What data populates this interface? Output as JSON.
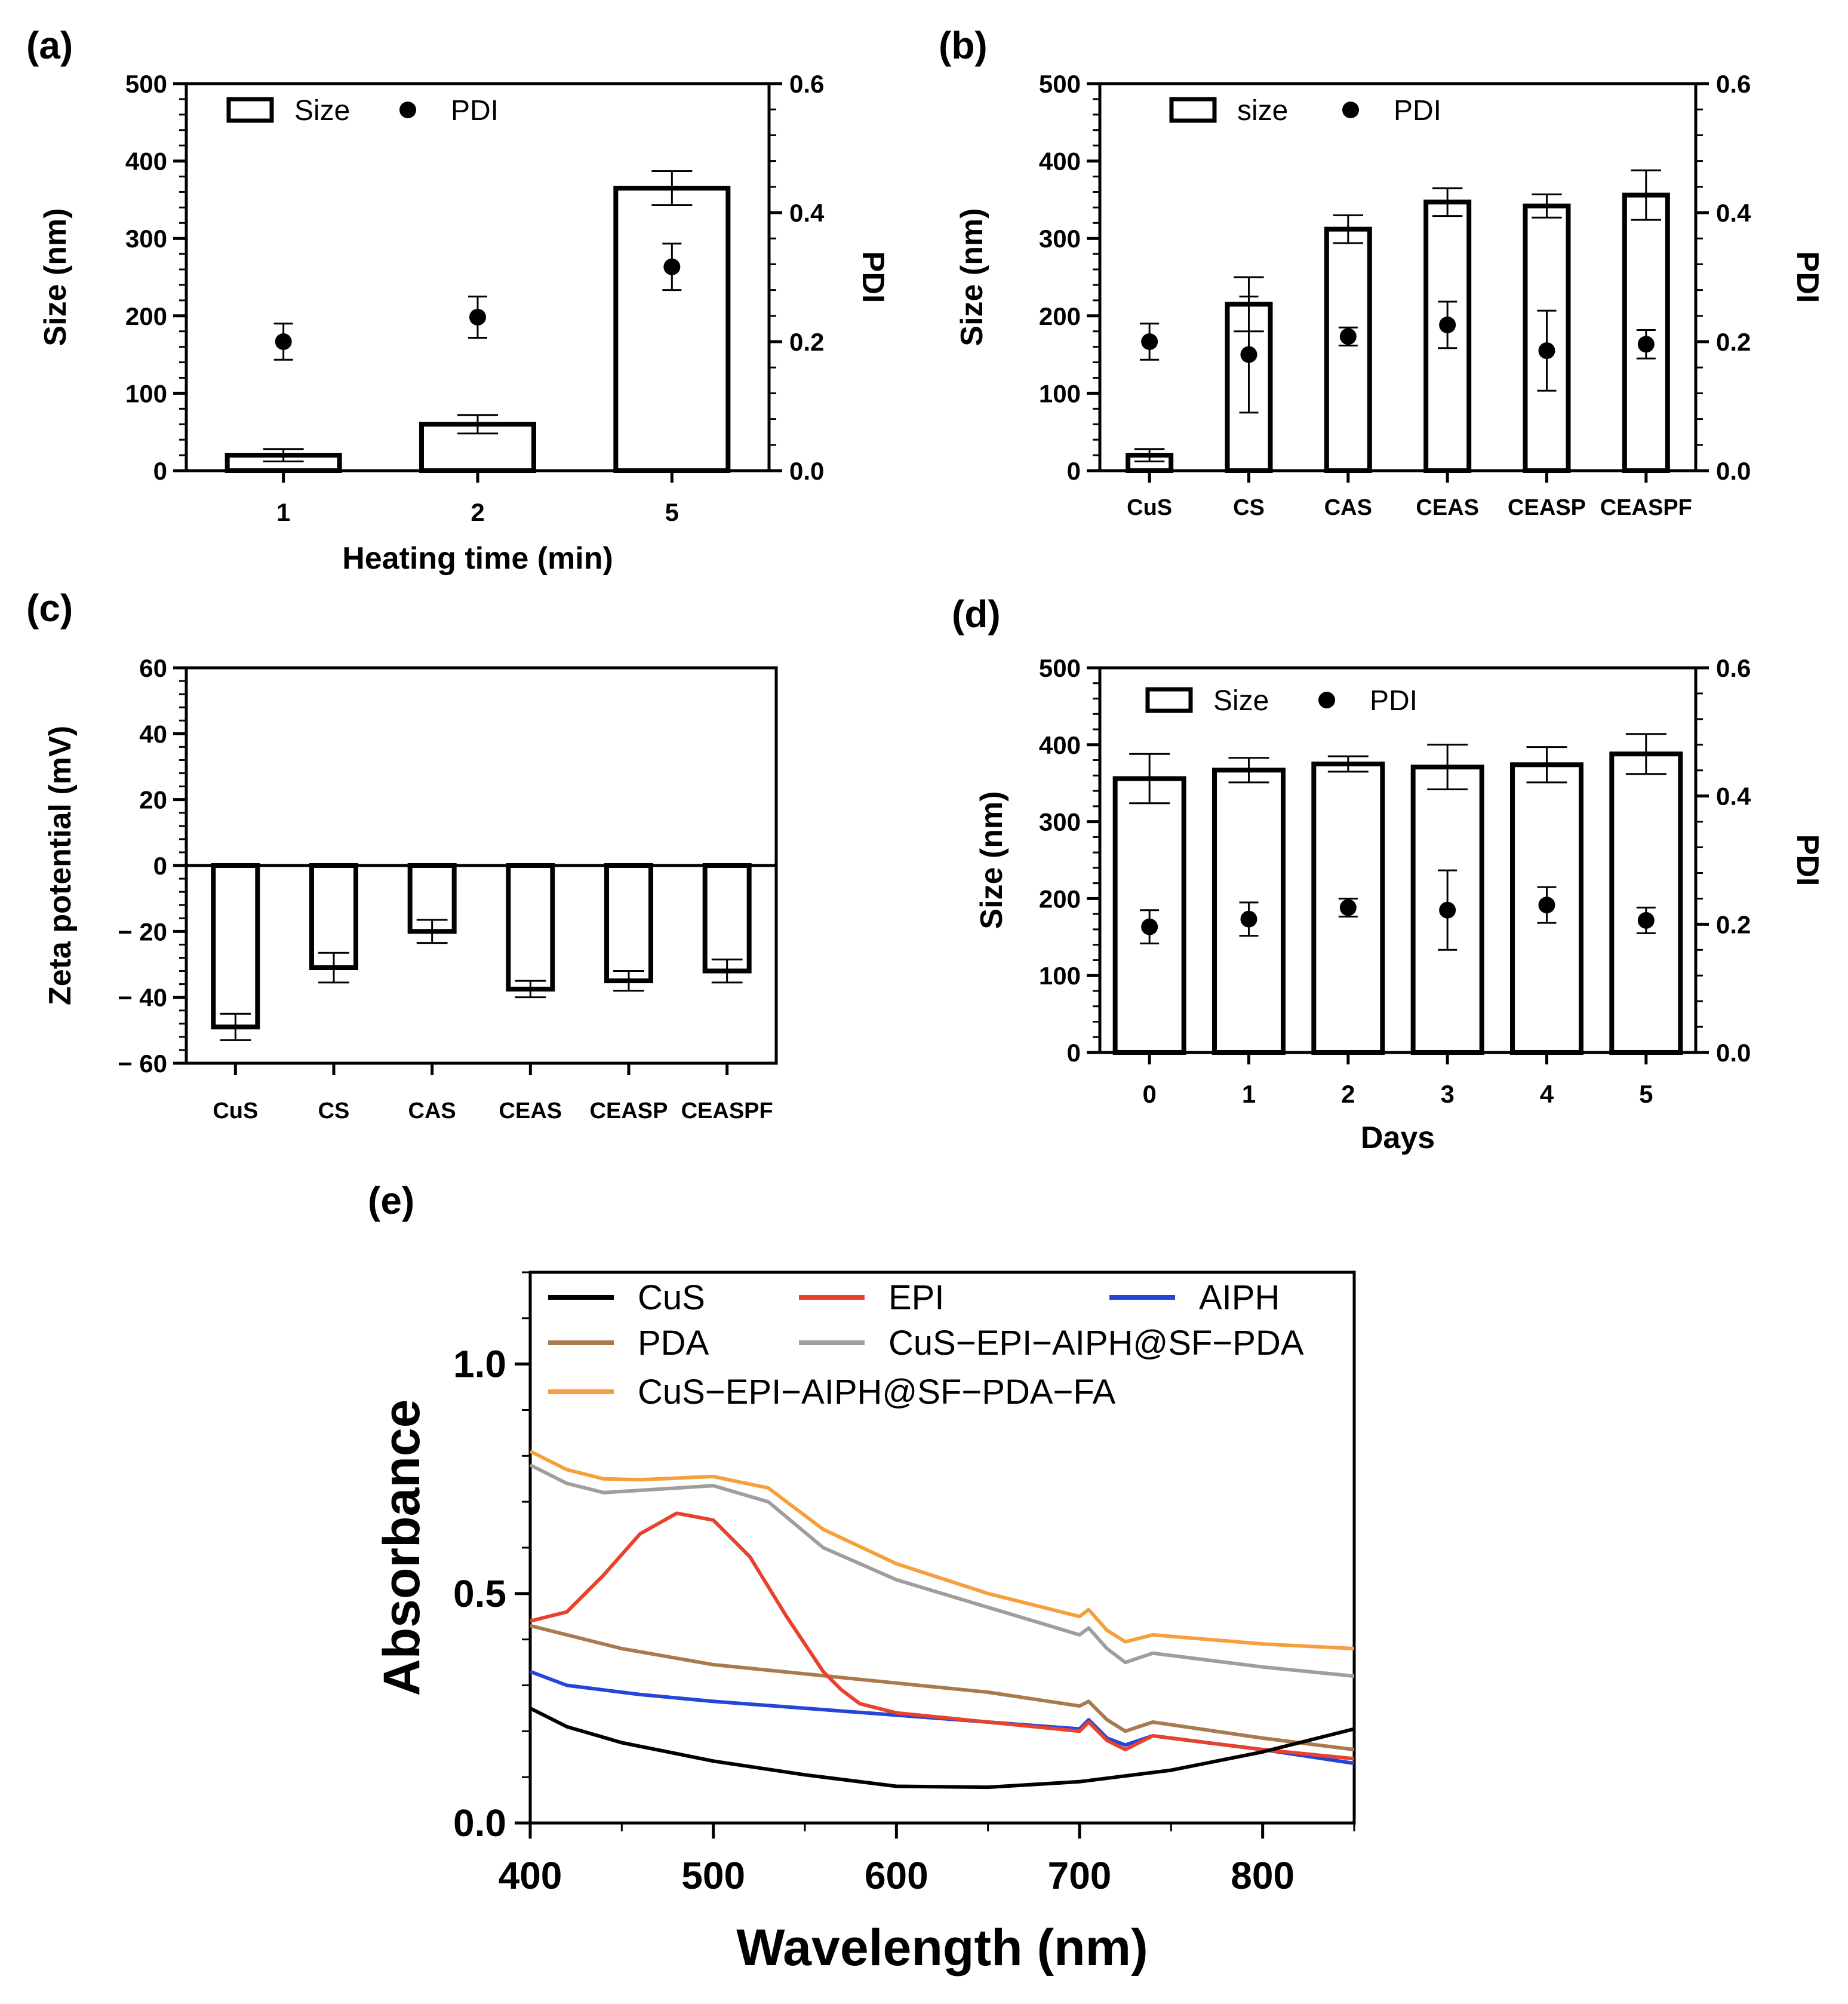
{
  "chart_data": [
    {
      "panel": "(a)",
      "type": "bar",
      "categories": [
        "1",
        "2",
        "5"
      ],
      "series": [
        {
          "name": "Size",
          "kind": "bar",
          "axis": "left",
          "values": [
            20,
            60,
            365
          ],
          "errors": [
            8,
            12,
            22
          ]
        },
        {
          "name": "PDI",
          "kind": "point",
          "axis": "right",
          "values": [
            0.2,
            0.238,
            0.316
          ],
          "errors": [
            0.028,
            0.032,
            0.036
          ]
        }
      ],
      "xlabel": "Heating time (min)",
      "ylabel": "Size (nm)",
      "y2label": "PDI",
      "ylim": [
        0,
        500
      ],
      "y2lim": [
        0,
        0.6
      ],
      "yticks": [
        "0",
        "100",
        "200",
        "300",
        "400",
        "500"
      ],
      "y2ticks": [
        "0.0",
        "0.2",
        "0.4",
        "0.6"
      ],
      "legend": {
        "bar_label": "Size",
        "point_label": "PDI",
        "position": "top-left"
      }
    },
    {
      "panel": "(b)",
      "type": "bar",
      "categories": [
        "CuS",
        "CS",
        "CAS",
        "CEAS",
        "CEASP",
        "CEASPF"
      ],
      "series": [
        {
          "name": "size",
          "kind": "bar",
          "axis": "left",
          "values": [
            20,
            215,
            312,
            347,
            342,
            356
          ],
          "errors": [
            8,
            35,
            18,
            18,
            15,
            32
          ]
        },
        {
          "name": "PDI",
          "kind": "point",
          "axis": "right",
          "values": [
            0.2,
            0.18,
            0.208,
            0.226,
            0.186,
            0.196
          ],
          "errors": [
            0.028,
            0.09,
            0.014,
            0.036,
            0.062,
            0.022
          ]
        }
      ],
      "xlabel": "",
      "ylabel": "Size (nm)",
      "y2label": "PDI",
      "ylim": [
        0,
        500
      ],
      "y2lim": [
        0,
        0.6
      ],
      "yticks": [
        "0",
        "100",
        "200",
        "300",
        "400",
        "500"
      ],
      "y2ticks": [
        "0.0",
        "0.2",
        "0.4",
        "0.6"
      ],
      "legend": {
        "bar_label": "size",
        "point_label": "PDI",
        "position": "top-left"
      }
    },
    {
      "panel": "(c)",
      "type": "bar",
      "categories": [
        "CuS",
        "CS",
        "CAS",
        "CEAS",
        "CEASP",
        "CEASPF"
      ],
      "series": [
        {
          "name": "Zeta potential",
          "kind": "bar",
          "axis": "left",
          "values": [
            -49,
            -31,
            -20,
            -37.5,
            -35,
            -32
          ],
          "errors": [
            4,
            4.5,
            3.5,
            2.5,
            3,
            3.5
          ]
        }
      ],
      "xlabel": "",
      "ylabel": "Zeta potential (mV)",
      "ylim": [
        -60,
        60
      ],
      "yticks": [
        "− 60",
        "− 40",
        "− 20",
        "0",
        "20",
        "40",
        "60"
      ]
    },
    {
      "panel": "(d)",
      "type": "bar",
      "categories": [
        "0",
        "1",
        "2",
        "3",
        "4",
        "5"
      ],
      "series": [
        {
          "name": "Size",
          "kind": "bar",
          "axis": "left",
          "values": [
            356,
            367,
            375,
            371,
            374,
            388
          ],
          "errors": [
            32,
            16,
            10,
            29,
            23,
            26
          ]
        },
        {
          "name": "PDI",
          "kind": "point",
          "axis": "right",
          "values": [
            0.196,
            0.208,
            0.226,
            0.222,
            0.23,
            0.206
          ],
          "errors": [
            0.026,
            0.026,
            0.014,
            0.062,
            0.028,
            0.02
          ]
        }
      ],
      "xlabel": "Days",
      "ylabel": "Size (nm)",
      "y2label": "PDI",
      "ylim": [
        0,
        500
      ],
      "y2lim": [
        0,
        0.6
      ],
      "yticks": [
        "0",
        "100",
        "200",
        "300",
        "400",
        "500"
      ],
      "y2ticks": [
        "0.0",
        "0.2",
        "0.4",
        "0.6"
      ],
      "legend": {
        "bar_label": "Size",
        "point_label": "PDI",
        "position": "top-left"
      }
    },
    {
      "panel": "(e)",
      "type": "line",
      "xlabel": "Wavelength (nm)",
      "ylabel": "Absorbance",
      "xlim": [
        400,
        850
      ],
      "ylim": [
        0,
        1.2
      ],
      "xticks": [
        "400",
        "500",
        "600",
        "700",
        "800"
      ],
      "yticks": [
        "0.0",
        "0.5",
        "1.0"
      ],
      "series": [
        {
          "name": "CuS",
          "color": "#000000",
          "x": [
            400,
            420,
            450,
            500,
            550,
            600,
            650,
            700,
            750,
            800,
            850
          ],
          "y": [
            0.25,
            0.21,
            0.175,
            0.135,
            0.105,
            0.08,
            0.078,
            0.09,
            0.115,
            0.155,
            0.205
          ]
        },
        {
          "name": "EPI",
          "color": "#e8412c",
          "x": [
            400,
            420,
            440,
            460,
            480,
            500,
            520,
            540,
            560,
            570,
            580,
            600,
            650,
            700,
            705,
            715,
            725,
            740,
            800,
            850
          ],
          "y": [
            0.44,
            0.46,
            0.54,
            0.63,
            0.675,
            0.66,
            0.58,
            0.45,
            0.33,
            0.29,
            0.26,
            0.24,
            0.22,
            0.2,
            0.22,
            0.18,
            0.16,
            0.19,
            0.16,
            0.14
          ]
        },
        {
          "name": "AIPH",
          "color": "#2544d9",
          "x": [
            400,
            420,
            440,
            460,
            500,
            550,
            600,
            650,
            700,
            705,
            715,
            725,
            740,
            800,
            850
          ],
          "y": [
            0.33,
            0.3,
            0.29,
            0.28,
            0.265,
            0.25,
            0.235,
            0.22,
            0.205,
            0.225,
            0.185,
            0.17,
            0.19,
            0.16,
            0.13
          ]
        },
        {
          "name": "PDA",
          "color": "#a87a4e",
          "x": [
            400,
            450,
            500,
            550,
            600,
            650,
            700,
            705,
            715,
            725,
            740,
            800,
            850
          ],
          "y": [
            0.43,
            0.38,
            0.345,
            0.325,
            0.305,
            0.285,
            0.255,
            0.265,
            0.225,
            0.2,
            0.22,
            0.185,
            0.16
          ]
        },
        {
          "name": "CuS−EPI−AIPH@SF−PDA",
          "color": "#9e9e9e",
          "x": [
            400,
            420,
            440,
            460,
            500,
            530,
            560,
            600,
            650,
            700,
            705,
            715,
            725,
            740,
            800,
            850
          ],
          "y": [
            0.78,
            0.74,
            0.72,
            0.725,
            0.735,
            0.7,
            0.6,
            0.53,
            0.47,
            0.41,
            0.425,
            0.38,
            0.35,
            0.37,
            0.34,
            0.32
          ]
        },
        {
          "name": "CuS−EPI−AIPH@SF−PDA−FA",
          "color": "#f5a03c",
          "x": [
            400,
            420,
            440,
            460,
            500,
            530,
            560,
            600,
            650,
            700,
            705,
            715,
            725,
            740,
            800,
            850
          ],
          "y": [
            0.81,
            0.77,
            0.75,
            0.748,
            0.755,
            0.73,
            0.64,
            0.565,
            0.5,
            0.45,
            0.465,
            0.42,
            0.395,
            0.41,
            0.39,
            0.38
          ]
        }
      ],
      "legend_position": "top"
    }
  ]
}
